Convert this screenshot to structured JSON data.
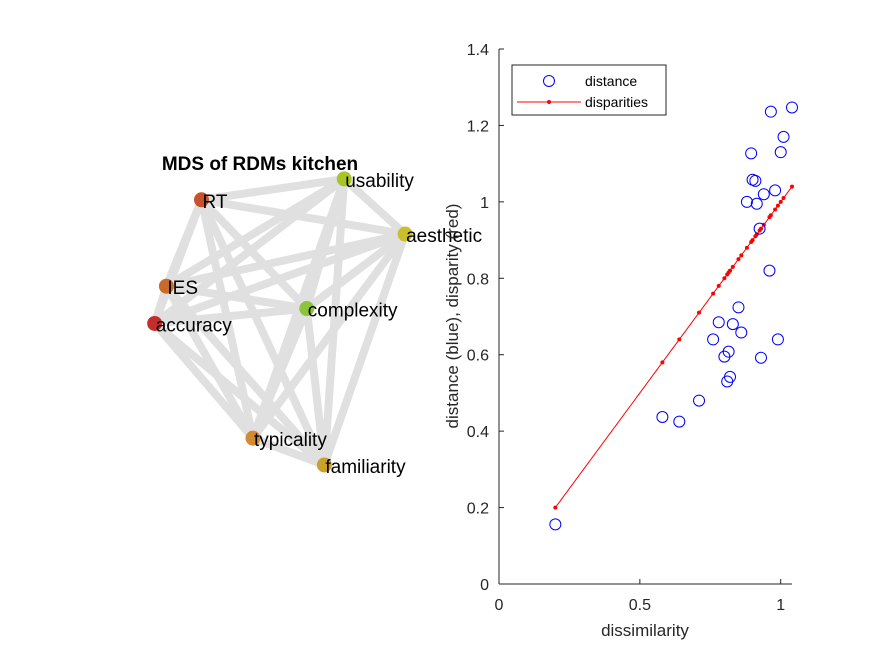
{
  "chart_data": [
    {
      "type": "network",
      "title": "MDS of RDMs kitchen",
      "nodes": [
        {
          "name": "usability",
          "x": 0.72,
          "y": 0.92,
          "color": "#a9c32a"
        },
        {
          "name": "RT",
          "x": -0.5,
          "y": 0.78,
          "color": "#c8522a"
        },
        {
          "name": "aesthetic",
          "x": 1.24,
          "y": 0.55,
          "color": "#c9bf2d"
        },
        {
          "name": "IES",
          "x": -0.8,
          "y": 0.2,
          "color": "#c76a2c"
        },
        {
          "name": "complexity",
          "x": 0.4,
          "y": 0.05,
          "color": "#8cc53c"
        },
        {
          "name": "accuracy",
          "x": -0.9,
          "y": -0.05,
          "color": "#c52d2a"
        },
        {
          "name": "typicality",
          "x": -0.06,
          "y": -0.82,
          "color": "#d48a30"
        },
        {
          "name": "familiarity",
          "x": 0.55,
          "y": -1.0,
          "color": "#c9a02e"
        }
      ],
      "edges": [
        [
          "usability",
          "RT"
        ],
        [
          "usability",
          "aesthetic"
        ],
        [
          "usability",
          "IES"
        ],
        [
          "usability",
          "complexity"
        ],
        [
          "usability",
          "accuracy"
        ],
        [
          "usability",
          "typicality"
        ],
        [
          "usability",
          "familiarity"
        ],
        [
          "RT",
          "aesthetic"
        ],
        [
          "RT",
          "IES"
        ],
        [
          "RT",
          "complexity"
        ],
        [
          "RT",
          "accuracy"
        ],
        [
          "RT",
          "typicality"
        ],
        [
          "RT",
          "familiarity"
        ],
        [
          "aesthetic",
          "IES"
        ],
        [
          "aesthetic",
          "complexity"
        ],
        [
          "aesthetic",
          "accuracy"
        ],
        [
          "aesthetic",
          "typicality"
        ],
        [
          "aesthetic",
          "familiarity"
        ],
        [
          "IES",
          "complexity"
        ],
        [
          "IES",
          "accuracy"
        ],
        [
          "IES",
          "typicality"
        ],
        [
          "IES",
          "familiarity"
        ],
        [
          "complexity",
          "accuracy"
        ],
        [
          "complexity",
          "typicality"
        ],
        [
          "complexity",
          "familiarity"
        ],
        [
          "accuracy",
          "typicality"
        ],
        [
          "accuracy",
          "familiarity"
        ],
        [
          "typicality",
          "familiarity"
        ]
      ],
      "edge_color": "#e0e0e0"
    },
    {
      "type": "scatter",
      "title": "",
      "xlabel": "dissimilarity",
      "ylabel": "distance (blue), disparity (red)",
      "xlim": [
        0,
        1.04
      ],
      "ylim": [
        0,
        1.4
      ],
      "xticks": [
        0,
        0.5,
        1
      ],
      "xtick_labels": [
        "0",
        "0.5",
        "1"
      ],
      "yticks": [
        0,
        0.2,
        0.4,
        0.6,
        0.8,
        1,
        1.2,
        1.4
      ],
      "ytick_labels": [
        "0",
        "0.2",
        "0.4",
        "0.6",
        "0.8",
        "1",
        "1.2",
        "1.4"
      ],
      "legend_position": "top-left",
      "series": [
        {
          "name": "distance",
          "style": "circle-markers",
          "color": "#0000ff",
          "points": [
            [
              0.2,
              0.156
            ],
            [
              0.58,
              0.437
            ],
            [
              0.64,
              0.425
            ],
            [
              0.71,
              0.48
            ],
            [
              0.76,
              0.64
            ],
            [
              0.78,
              0.685
            ],
            [
              0.8,
              0.595
            ],
            [
              0.81,
              0.53
            ],
            [
              0.815,
              0.608
            ],
            [
              0.82,
              0.542
            ],
            [
              0.83,
              0.68
            ],
            [
              0.85,
              0.724
            ],
            [
              0.86,
              0.658
            ],
            [
              0.88,
              1.0
            ],
            [
              0.895,
              1.127
            ],
            [
              0.9,
              1.058
            ],
            [
              0.91,
              1.055
            ],
            [
              0.915,
              0.995
            ],
            [
              0.925,
              0.93
            ],
            [
              0.93,
              0.592
            ],
            [
              0.94,
              1.02
            ],
            [
              0.96,
              0.82
            ],
            [
              0.965,
              1.236
            ],
            [
              0.98,
              1.03
            ],
            [
              0.99,
              0.64
            ],
            [
              1.0,
              1.13
            ],
            [
              1.01,
              1.17
            ],
            [
              1.04,
              1.247
            ]
          ]
        },
        {
          "name": "disparities",
          "style": "line-dots",
          "color": "#ff0000",
          "points": [
            [
              0.2,
              0.2
            ],
            [
              0.58,
              0.58
            ],
            [
              0.64,
              0.64
            ],
            [
              0.71,
              0.71
            ],
            [
              0.76,
              0.76
            ],
            [
              0.78,
              0.78
            ],
            [
              0.8,
              0.8
            ],
            [
              0.81,
              0.81
            ],
            [
              0.815,
              0.815
            ],
            [
              0.82,
              0.82
            ],
            [
              0.83,
              0.83
            ],
            [
              0.85,
              0.85
            ],
            [
              0.86,
              0.86
            ],
            [
              0.88,
              0.88
            ],
            [
              0.895,
              0.895
            ],
            [
              0.9,
              0.9
            ],
            [
              0.91,
              0.91
            ],
            [
              0.915,
              0.915
            ],
            [
              0.925,
              0.925
            ],
            [
              0.93,
              0.93
            ],
            [
              0.94,
              0.94
            ],
            [
              0.96,
              0.96
            ],
            [
              0.965,
              0.965
            ],
            [
              0.98,
              0.98
            ],
            [
              0.99,
              0.99
            ],
            [
              1.0,
              1.0
            ],
            [
              1.01,
              1.01
            ],
            [
              1.04,
              1.04
            ]
          ]
        }
      ]
    }
  ]
}
